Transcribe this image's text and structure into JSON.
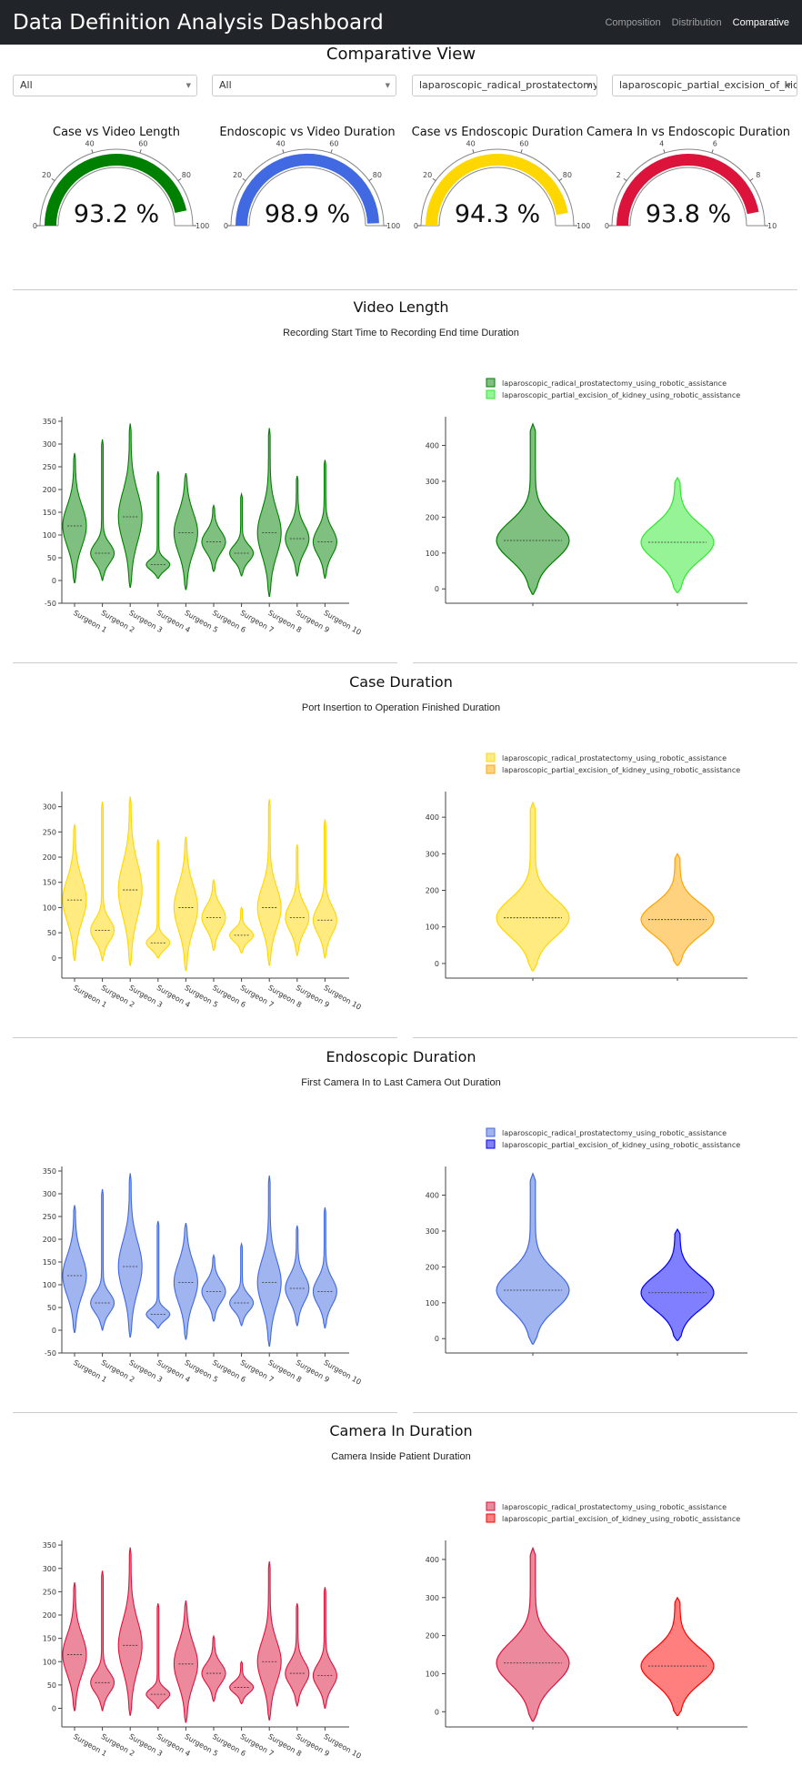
{
  "navbar": {
    "brand": "Data Definition Analysis Dashboard",
    "links": [
      "Composition",
      "Distribution",
      "Comparative"
    ],
    "active": "Comparative"
  },
  "page_title": "Comparative View",
  "filters": [
    {
      "value": "All"
    },
    {
      "value": "All"
    },
    {
      "value": "laparoscopic_radical_prostatectomy..."
    },
    {
      "value": "laparoscopic_partial_excision_of_kid..."
    }
  ],
  "gauges": [
    {
      "title": "Case vs Video Length",
      "value": 93.2,
      "label": "93.2 %",
      "max": 100,
      "ticks": [
        0,
        20,
        40,
        60,
        80,
        100
      ],
      "color": "#008000"
    },
    {
      "title": "Endoscopic vs Video Duration",
      "value": 98.9,
      "label": "98.9 %",
      "max": 100,
      "ticks": [
        0,
        20,
        40,
        60,
        80,
        100
      ],
      "color": "#4169e1"
    },
    {
      "title": "Case vs Endoscopic Duration",
      "value": 94.3,
      "label": "94.3 %",
      "max": 100,
      "ticks": [
        0,
        20,
        40,
        60,
        80,
        100
      ],
      "color": "#ffd700"
    },
    {
      "title": "Camera In vs Endoscopic Duration",
      "value": 9.38,
      "label": "93.8 %",
      "max": 10,
      "ticks": [
        0,
        2,
        4,
        6,
        8,
        10
      ],
      "color": "#dc143c"
    }
  ],
  "sections": [
    {
      "title": "Video Length",
      "subtitle": "Recording Start Time to Recording End time Duration",
      "surgeon_chart": {
        "type": "violin",
        "categories": [
          "Surgeon 1",
          "Surgeon 2",
          "Surgeon 3",
          "Surgeon 4",
          "Surgeon 5",
          "Surgeon 6",
          "Surgeon 7",
          "Surgeon 8",
          "Surgeon 9",
          "Surgeon 10"
        ],
        "medians": [
          120,
          60,
          140,
          35,
          105,
          85,
          60,
          105,
          92,
          85
        ],
        "mins": [
          -5,
          0,
          -15,
          5,
          -20,
          20,
          10,
          -35,
          10,
          5
        ],
        "maxs": [
          280,
          310,
          345,
          240,
          235,
          165,
          190,
          335,
          230,
          265
        ],
        "yticks": [
          -50,
          0,
          50,
          100,
          150,
          200,
          250,
          300,
          350
        ],
        "ylim": [
          -50,
          360
        ],
        "color": "#008000"
      },
      "procedure_chart": {
        "type": "violin",
        "legend": [
          "laparoscopic_radical_prostatectomy_using_robotic_assistance",
          "laparoscopic_partial_excision_of_kidney_using_robotic_assistance"
        ],
        "medians": [
          135,
          130
        ],
        "mins": [
          -15,
          -10
        ],
        "maxs": [
          460,
          310
        ],
        "yticks": [
          0,
          100,
          200,
          300,
          400
        ],
        "ylim": [
          -40,
          480
        ],
        "colors": [
          "#008000",
          "#2ee82e"
        ]
      }
    },
    {
      "title": "Case Duration",
      "subtitle": "Port Insertion to Operation Finished Duration",
      "surgeon_chart": {
        "type": "violin",
        "categories": [
          "Surgeon 1",
          "Surgeon 2",
          "Surgeon 3",
          "Surgeon 4",
          "Surgeon 5",
          "Surgeon 6",
          "Surgeon 7",
          "Surgeon 8",
          "Surgeon 9",
          "Surgeon 10"
        ],
        "medians": [
          115,
          55,
          135,
          30,
          100,
          80,
          45,
          100,
          80,
          75
        ],
        "mins": [
          -5,
          -5,
          -15,
          0,
          -25,
          15,
          10,
          -15,
          5,
          0
        ],
        "maxs": [
          265,
          310,
          320,
          235,
          240,
          155,
          100,
          315,
          225,
          275
        ],
        "yticks": [
          0,
          50,
          100,
          150,
          200,
          250,
          300
        ],
        "ylim": [
          -40,
          330
        ],
        "color": "#ffd700"
      },
      "procedure_chart": {
        "type": "violin",
        "legend": [
          "laparoscopic_radical_prostatectomy_using_robotic_assistance",
          "laparoscopic_partial_excision_of_kidney_using_robotic_assistance"
        ],
        "medians": [
          125,
          120
        ],
        "mins": [
          -20,
          -5
        ],
        "maxs": [
          440,
          300
        ],
        "yticks": [
          0,
          100,
          200,
          300,
          400
        ],
        "ylim": [
          -40,
          470
        ],
        "colors": [
          "#ffd700",
          "#ffa500"
        ]
      }
    },
    {
      "title": "Endoscopic Duration",
      "subtitle": "First Camera In to Last Camera Out Duration",
      "surgeon_chart": {
        "type": "violin",
        "categories": [
          "Surgeon 1",
          "Surgeon 2",
          "Surgeon 3",
          "Surgeon 4",
          "Surgeon 5",
          "Surgeon 6",
          "Surgeon 7",
          "Surgeon 8",
          "Surgeon 9",
          "Surgeon 10"
        ],
        "medians": [
          120,
          60,
          140,
          35,
          105,
          85,
          60,
          105,
          92,
          85
        ],
        "mins": [
          -5,
          0,
          -15,
          5,
          -20,
          20,
          10,
          -35,
          10,
          5
        ],
        "maxs": [
          275,
          310,
          345,
          240,
          235,
          165,
          190,
          340,
          230,
          270
        ],
        "yticks": [
          -50,
          0,
          50,
          100,
          150,
          200,
          250,
          300,
          350
        ],
        "ylim": [
          -50,
          360
        ],
        "color": "#4169e1"
      },
      "procedure_chart": {
        "type": "violin",
        "legend": [
          "laparoscopic_radical_prostatectomy_using_robotic_assistance",
          "laparoscopic_partial_excision_of_kidney_using_robotic_assistance"
        ],
        "medians": [
          135,
          128
        ],
        "mins": [
          -15,
          -5
        ],
        "maxs": [
          460,
          305
        ],
        "yticks": [
          0,
          100,
          200,
          300,
          400
        ],
        "ylim": [
          -40,
          480
        ],
        "colors": [
          "#4169e1",
          "#0000ff"
        ]
      }
    },
    {
      "title": "Camera In Duration",
      "subtitle": "Camera Inside Patient Duration",
      "surgeon_chart": {
        "type": "violin",
        "categories": [
          "Surgeon 1",
          "Surgeon 2",
          "Surgeon 3",
          "Surgeon 4",
          "Surgeon 5",
          "Surgeon 6",
          "Surgeon 7",
          "Surgeon 8",
          "Surgeon 9",
          "Surgeon 10"
        ],
        "medians": [
          115,
          55,
          135,
          30,
          95,
          75,
          45,
          100,
          75,
          70
        ],
        "mins": [
          -5,
          -5,
          -15,
          0,
          -30,
          15,
          10,
          -25,
          5,
          0
        ],
        "maxs": [
          270,
          295,
          345,
          225,
          230,
          155,
          100,
          315,
          225,
          260
        ],
        "yticks": [
          0,
          50,
          100,
          150,
          200,
          250,
          300,
          350
        ],
        "ylim": [
          -40,
          360
        ],
        "color": "#dc143c"
      },
      "procedure_chart": {
        "type": "violin",
        "legend": [
          "laparoscopic_radical_prostatectomy_using_robotic_assistance",
          "laparoscopic_partial_excision_of_kidney_using_robotic_assistance"
        ],
        "medians": [
          128,
          120
        ],
        "mins": [
          -25,
          -10
        ],
        "maxs": [
          430,
          300
        ],
        "yticks": [
          0,
          100,
          200,
          300,
          400
        ],
        "ylim": [
          -40,
          450
        ],
        "colors": [
          "#dc143c",
          "#ff0000"
        ]
      }
    }
  ]
}
